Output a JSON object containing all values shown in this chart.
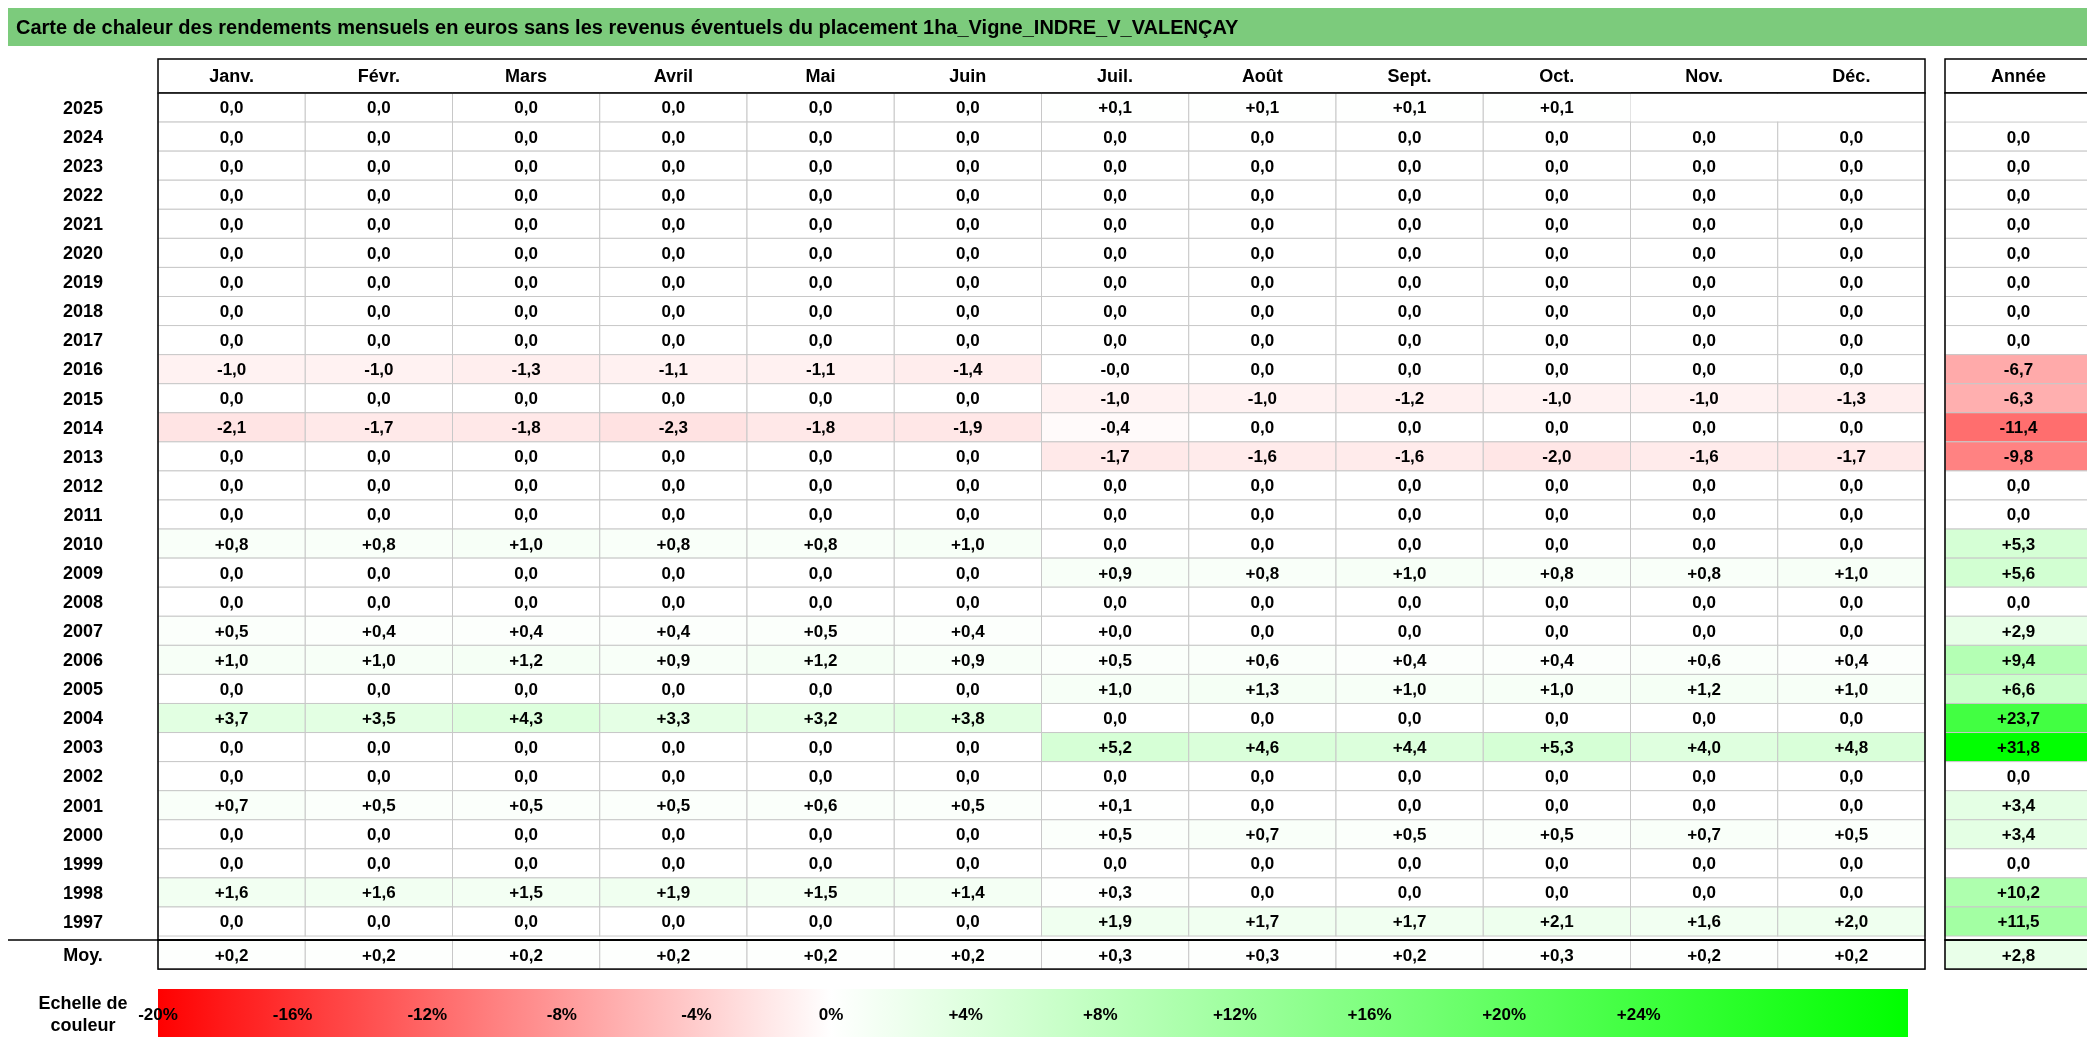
{
  "chart_data": {
    "type": "heatmap",
    "title": "Carte de chaleur des rendements mensuels en euros sans les revenus éventuels du placement 1ha_Vigne_INDRE_V_VALENÇAY",
    "categories": [
      "Janv.",
      "Févr.",
      "Mars",
      "Avril",
      "Mai",
      "Juin",
      "Juil.",
      "Août",
      "Sept.",
      "Oct.",
      "Nov.",
      "Déc.",
      "Année"
    ],
    "y_categories": [
      "2025",
      "2024",
      "2023",
      "2022",
      "2021",
      "2020",
      "2019",
      "2018",
      "2017",
      "2016",
      "2015",
      "2014",
      "2013",
      "2012",
      "2011",
      "2010",
      "2009",
      "2008",
      "2007",
      "2006",
      "2005",
      "2004",
      "2003",
      "2002",
      "2001",
      "2000",
      "1999",
      "1998",
      "1997",
      "Moy."
    ],
    "cells": [
      [
        0,
        0,
        0,
        0,
        0,
        0,
        0.1,
        0.1,
        0.1,
        0.1,
        null,
        null,
        null
      ],
      [
        0,
        0,
        0,
        0,
        0,
        0,
        0,
        0,
        0,
        0,
        0,
        0,
        0
      ],
      [
        0,
        0,
        0,
        0,
        0,
        0,
        0,
        0,
        0,
        0,
        0,
        0,
        0
      ],
      [
        0,
        0,
        0,
        0,
        0,
        0,
        0,
        0,
        0,
        0,
        0,
        0,
        0
      ],
      [
        0,
        0,
        0,
        0,
        0,
        0,
        0,
        0,
        0,
        0,
        0,
        0,
        0
      ],
      [
        0,
        0,
        0,
        0,
        0,
        0,
        0,
        0,
        0,
        0,
        0,
        0,
        0
      ],
      [
        0,
        0,
        0,
        0,
        0,
        0,
        0,
        0,
        0,
        0,
        0,
        0,
        0
      ],
      [
        0,
        0,
        0,
        0,
        0,
        0,
        0,
        0,
        0,
        0,
        0,
        0,
        0
      ],
      [
        0,
        0,
        0,
        0,
        0,
        0,
        0,
        0,
        0,
        0,
        0,
        0,
        0
      ],
      [
        -1.0,
        -1.0,
        -1.3,
        -1.1,
        -1.1,
        -1.4,
        -0.0,
        0,
        0,
        0,
        0,
        0,
        -6.7
      ],
      [
        0,
        0,
        0,
        0,
        0,
        0,
        -1.0,
        -1.0,
        -1.2,
        -1.0,
        -1.0,
        -1.3,
        -6.3
      ],
      [
        -2.1,
        -1.7,
        -1.8,
        -2.3,
        -1.8,
        -1.9,
        -0.4,
        0,
        0,
        0,
        0,
        0,
        -11.4
      ],
      [
        0,
        0,
        0,
        0,
        0,
        0,
        -1.7,
        -1.6,
        -1.6,
        -2.0,
        -1.6,
        -1.7,
        -9.8
      ],
      [
        0,
        0,
        0,
        0,
        0,
        0,
        0,
        0,
        0,
        0,
        0,
        0,
        0
      ],
      [
        0,
        0,
        0,
        0,
        0,
        0,
        0,
        0,
        0,
        0,
        0,
        0,
        0
      ],
      [
        0.8,
        0.8,
        1.0,
        0.8,
        0.8,
        1.0,
        0,
        0,
        0,
        0,
        0,
        0,
        5.3
      ],
      [
        0,
        0,
        0,
        0,
        0,
        0,
        0.9,
        0.8,
        1.0,
        0.8,
        0.8,
        1.0,
        5.6
      ],
      [
        0,
        0,
        0,
        0,
        0,
        0,
        0,
        0,
        0,
        0,
        0,
        0,
        0
      ],
      [
        0.5,
        0.4,
        0.4,
        0.4,
        0.5,
        0.4,
        0.0,
        0,
        0,
        0,
        0,
        0,
        2.9
      ],
      [
        1.0,
        1.0,
        1.2,
        0.9,
        1.2,
        0.9,
        0.5,
        0.6,
        0.4,
        0.4,
        0.6,
        0.4,
        9.4
      ],
      [
        0,
        0,
        0,
        0,
        0,
        0,
        1.0,
        1.3,
        1.0,
        1.0,
        1.2,
        1.0,
        6.6
      ],
      [
        3.7,
        3.5,
        4.3,
        3.3,
        3.2,
        3.8,
        0,
        0,
        0,
        0,
        0,
        0,
        23.7
      ],
      [
        0,
        0,
        0,
        0,
        0,
        0,
        5.2,
        4.6,
        4.4,
        5.3,
        4.0,
        4.8,
        31.8
      ],
      [
        0,
        0,
        0,
        0,
        0,
        0,
        0,
        0,
        0,
        0,
        0,
        0,
        0
      ],
      [
        0.7,
        0.5,
        0.5,
        0.5,
        0.6,
        0.5,
        0.1,
        0,
        0,
        0,
        0,
        0,
        3.4
      ],
      [
        0,
        0,
        0,
        0,
        0,
        0,
        0.5,
        0.7,
        0.5,
        0.5,
        0.7,
        0.5,
        3.4
      ],
      [
        0,
        0,
        0,
        0,
        0,
        0,
        0,
        0,
        0,
        0,
        0,
        0,
        0
      ],
      [
        1.6,
        1.6,
        1.5,
        1.9,
        1.5,
        1.4,
        0.3,
        0,
        0,
        0,
        0,
        0,
        10.2
      ],
      [
        0,
        0,
        0,
        0,
        0,
        0,
        1.9,
        1.7,
        1.7,
        2.1,
        1.6,
        2.0,
        11.5
      ],
      [
        0.2,
        0.2,
        0.2,
        0.2,
        0.2,
        0.2,
        0.3,
        0.3,
        0.2,
        0.3,
        0.2,
        0.2,
        2.8
      ]
    ],
    "cell_labels": [
      [
        "0,0",
        "0,0",
        "0,0",
        "0,0",
        "0,0",
        "0,0",
        "+0,1",
        "+0,1",
        "+0,1",
        "+0,1",
        null,
        null,
        null
      ],
      [
        "0,0",
        "0,0",
        "0,0",
        "0,0",
        "0,0",
        "0,0",
        "0,0",
        "0,0",
        "0,0",
        "0,0",
        "0,0",
        "0,0",
        "0,0"
      ],
      [
        "0,0",
        "0,0",
        "0,0",
        "0,0",
        "0,0",
        "0,0",
        "0,0",
        "0,0",
        "0,0",
        "0,0",
        "0,0",
        "0,0",
        "0,0"
      ],
      [
        "0,0",
        "0,0",
        "0,0",
        "0,0",
        "0,0",
        "0,0",
        "0,0",
        "0,0",
        "0,0",
        "0,0",
        "0,0",
        "0,0",
        "0,0"
      ],
      [
        "0,0",
        "0,0",
        "0,0",
        "0,0",
        "0,0",
        "0,0",
        "0,0",
        "0,0",
        "0,0",
        "0,0",
        "0,0",
        "0,0",
        "0,0"
      ],
      [
        "0,0",
        "0,0",
        "0,0",
        "0,0",
        "0,0",
        "0,0",
        "0,0",
        "0,0",
        "0,0",
        "0,0",
        "0,0",
        "0,0",
        "0,0"
      ],
      [
        "0,0",
        "0,0",
        "0,0",
        "0,0",
        "0,0",
        "0,0",
        "0,0",
        "0,0",
        "0,0",
        "0,0",
        "0,0",
        "0,0",
        "0,0"
      ],
      [
        "0,0",
        "0,0",
        "0,0",
        "0,0",
        "0,0",
        "0,0",
        "0,0",
        "0,0",
        "0,0",
        "0,0",
        "0,0",
        "0,0",
        "0,0"
      ],
      [
        "0,0",
        "0,0",
        "0,0",
        "0,0",
        "0,0",
        "0,0",
        "0,0",
        "0,0",
        "0,0",
        "0,0",
        "0,0",
        "0,0",
        "0,0"
      ],
      [
        "-1,0",
        "-1,0",
        "-1,3",
        "-1,1",
        "-1,1",
        "-1,4",
        "-0,0",
        "0,0",
        "0,0",
        "0,0",
        "0,0",
        "0,0",
        "-6,7"
      ],
      [
        "0,0",
        "0,0",
        "0,0",
        "0,0",
        "0,0",
        "0,0",
        "-1,0",
        "-1,0",
        "-1,2",
        "-1,0",
        "-1,0",
        "-1,3",
        "-6,3"
      ],
      [
        "-2,1",
        "-1,7",
        "-1,8",
        "-2,3",
        "-1,8",
        "-1,9",
        "-0,4",
        "0,0",
        "0,0",
        "0,0",
        "0,0",
        "0,0",
        "-11,4"
      ],
      [
        "0,0",
        "0,0",
        "0,0",
        "0,0",
        "0,0",
        "0,0",
        "-1,7",
        "-1,6",
        "-1,6",
        "-2,0",
        "-1,6",
        "-1,7",
        "-9,8"
      ],
      [
        "0,0",
        "0,0",
        "0,0",
        "0,0",
        "0,0",
        "0,0",
        "0,0",
        "0,0",
        "0,0",
        "0,0",
        "0,0",
        "0,0",
        "0,0"
      ],
      [
        "0,0",
        "0,0",
        "0,0",
        "0,0",
        "0,0",
        "0,0",
        "0,0",
        "0,0",
        "0,0",
        "0,0",
        "0,0",
        "0,0",
        "0,0"
      ],
      [
        "+0,8",
        "+0,8",
        "+1,0",
        "+0,8",
        "+0,8",
        "+1,0",
        "0,0",
        "0,0",
        "0,0",
        "0,0",
        "0,0",
        "0,0",
        "+5,3"
      ],
      [
        "0,0",
        "0,0",
        "0,0",
        "0,0",
        "0,0",
        "0,0",
        "+0,9",
        "+0,8",
        "+1,0",
        "+0,8",
        "+0,8",
        "+1,0",
        "+5,6"
      ],
      [
        "0,0",
        "0,0",
        "0,0",
        "0,0",
        "0,0",
        "0,0",
        "0,0",
        "0,0",
        "0,0",
        "0,0",
        "0,0",
        "0,0",
        "0,0"
      ],
      [
        "+0,5",
        "+0,4",
        "+0,4",
        "+0,4",
        "+0,5",
        "+0,4",
        "+0,0",
        "0,0",
        "0,0",
        "0,0",
        "0,0",
        "0,0",
        "+2,9"
      ],
      [
        "+1,0",
        "+1,0",
        "+1,2",
        "+0,9",
        "+1,2",
        "+0,9",
        "+0,5",
        "+0,6",
        "+0,4",
        "+0,4",
        "+0,6",
        "+0,4",
        "+9,4"
      ],
      [
        "0,0",
        "0,0",
        "0,0",
        "0,0",
        "0,0",
        "0,0",
        "+1,0",
        "+1,3",
        "+1,0",
        "+1,0",
        "+1,2",
        "+1,0",
        "+6,6"
      ],
      [
        "+3,7",
        "+3,5",
        "+4,3",
        "+3,3",
        "+3,2",
        "+3,8",
        "0,0",
        "0,0",
        "0,0",
        "0,0",
        "0,0",
        "0,0",
        "+23,7"
      ],
      [
        "0,0",
        "0,0",
        "0,0",
        "0,0",
        "0,0",
        "0,0",
        "+5,2",
        "+4,6",
        "+4,4",
        "+5,3",
        "+4,0",
        "+4,8",
        "+31,8"
      ],
      [
        "0,0",
        "0,0",
        "0,0",
        "0,0",
        "0,0",
        "0,0",
        "0,0",
        "0,0",
        "0,0",
        "0,0",
        "0,0",
        "0,0",
        "0,0"
      ],
      [
        "+0,7",
        "+0,5",
        "+0,5",
        "+0,5",
        "+0,6",
        "+0,5",
        "+0,1",
        "0,0",
        "0,0",
        "0,0",
        "0,0",
        "0,0",
        "+3,4"
      ],
      [
        "0,0",
        "0,0",
        "0,0",
        "0,0",
        "0,0",
        "0,0",
        "+0,5",
        "+0,7",
        "+0,5",
        "+0,5",
        "+0,7",
        "+0,5",
        "+3,4"
      ],
      [
        "0,0",
        "0,0",
        "0,0",
        "0,0",
        "0,0",
        "0,0",
        "0,0",
        "0,0",
        "0,0",
        "0,0",
        "0,0",
        "0,0",
        "0,0"
      ],
      [
        "+1,6",
        "+1,6",
        "+1,5",
        "+1,9",
        "+1,5",
        "+1,4",
        "+0,3",
        "0,0",
        "0,0",
        "0,0",
        "0,0",
        "0,0",
        "+10,2"
      ],
      [
        "0,0",
        "0,0",
        "0,0",
        "0,0",
        "0,0",
        "0,0",
        "+1,9",
        "+1,7",
        "+1,7",
        "+2,1",
        "+1,6",
        "+2,0",
        "+11,5"
      ],
      [
        "+0,2",
        "+0,2",
        "+0,2",
        "+0,2",
        "+0,2",
        "+0,2",
        "+0,3",
        "+0,3",
        "+0,2",
        "+0,3",
        "+0,2",
        "+0,2",
        "+2,8"
      ]
    ],
    "clabel": "Echelle de couleur",
    "clim": [
      -20,
      32
    ],
    "cticks": [
      {
        "value": -20,
        "label": "-20%"
      },
      {
        "value": -16,
        "label": "-16%"
      },
      {
        "value": -12,
        "label": "-12%"
      },
      {
        "value": -8,
        "label": "-8%"
      },
      {
        "value": -4,
        "label": "-4%"
      },
      {
        "value": 0,
        "label": "0%"
      },
      {
        "value": 4,
        "label": "+4%"
      },
      {
        "value": 8,
        "label": "+8%"
      },
      {
        "value": 12,
        "label": "+12%"
      },
      {
        "value": 16,
        "label": "+16%"
      },
      {
        "value": 20,
        "label": "+20%"
      },
      {
        "value": 24,
        "label": "+24%"
      }
    ]
  }
}
